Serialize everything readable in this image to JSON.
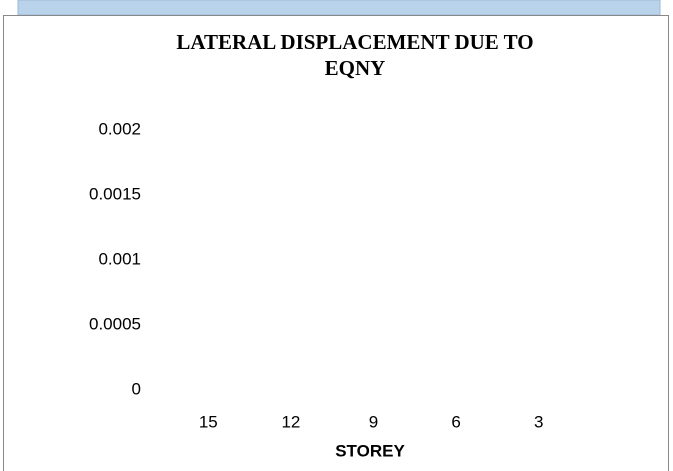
{
  "chart_data": {
    "type": "bar",
    "title": [
      "LATERAL DISPLACEMENT DUE TO",
      "EQNY"
    ],
    "categories": [
      "15",
      "12",
      "9",
      "6",
      "3"
    ],
    "x_label": "STOREY",
    "ylim": [
      0,
      0.002
    ],
    "yticks": [
      0,
      0.0005,
      0.001,
      0.0015,
      0.002
    ],
    "grid": false
  }
}
